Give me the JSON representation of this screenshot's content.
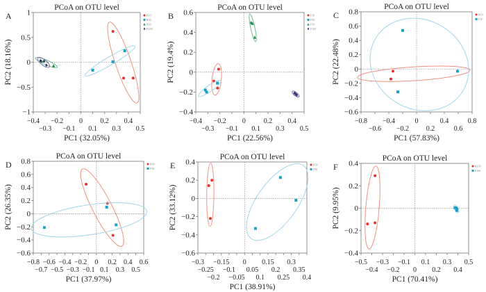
{
  "chart_data": [
    {
      "panel": "A",
      "type": "scatter",
      "title": "PCoA on OTU level",
      "xlabel": "PC1 (32.05%)",
      "ylabel": "PC2 (18.16%)",
      "xlim": [
        -0.4,
        0.5
      ],
      "xtick_step": 0.1,
      "ylim": [
        -1,
        1
      ],
      "ytick_step": 0.5,
      "zero_lines": true,
      "legend": "top-right",
      "series": [
        {
          "name": "R10",
          "color": "#e8312a",
          "ellipse_color": "#f3907f",
          "marker": "circle",
          "points": [
            [
              0.27,
              0.62
            ],
            [
              0.36,
              -0.32
            ],
            [
              0.44,
              -0.32
            ]
          ]
        },
        {
          "name": "R30",
          "color": "#1ba1c6",
          "ellipse_color": "#9fd5ea",
          "marker": "square",
          "points": [
            [
              0.1,
              -0.16
            ],
            [
              0.27,
              0.01
            ],
            [
              0.37,
              0.23
            ]
          ]
        },
        {
          "name": "R50",
          "color": "#1a8a4a",
          "ellipse_color": "#6db98c",
          "marker": "triangle",
          "points": [
            [
              -0.33,
              0.02
            ],
            [
              -0.31,
              0.03
            ],
            [
              -0.23,
              -0.07
            ]
          ]
        },
        {
          "name": "R100",
          "color": "#3b2b6e",
          "ellipse_color": "#7b70a6",
          "marker": "diamond",
          "points": [
            [
              -0.34,
              0.03
            ],
            [
              -0.31,
              0.02
            ],
            [
              -0.29,
              -0.06
            ]
          ]
        }
      ]
    },
    {
      "panel": "B",
      "type": "scatter",
      "title": "PCoA on OTU level",
      "xlabel": "PC1 (22.56%)",
      "ylabel": "PC2 (19.4%)",
      "xlim": [
        -0.4,
        0.5
      ],
      "xtick_step": 0.1,
      "ylim": [
        -0.4,
        0.6
      ],
      "ytick_step": 0.2,
      "zero_lines": true,
      "legend": "top-right",
      "series": [
        {
          "name": "F10",
          "color": "#e8312a",
          "ellipse_color": "#f3907f",
          "marker": "circle",
          "points": [
            [
              -0.25,
              -0.09
            ],
            [
              -0.21,
              0.03
            ],
            [
              -0.22,
              -0.16
            ]
          ]
        },
        {
          "name": "F30",
          "color": "#1ba1c6",
          "ellipse_color": "#9fd5ea",
          "marker": "square",
          "points": [
            [
              -0.32,
              -0.18
            ],
            [
              -0.31,
              -0.2
            ],
            [
              -0.22,
              -0.11
            ]
          ]
        },
        {
          "name": "F50",
          "color": "#1a8a4a",
          "ellipse_color": "#6db98c",
          "marker": "triangle",
          "points": [
            [
              0.06,
              0.5
            ],
            [
              0.07,
              0.49
            ],
            [
              0.09,
              0.35
            ]
          ]
        },
        {
          "name": "F100",
          "color": "#3b2b6e",
          "ellipse_color": "#7b70a6",
          "marker": "diamond",
          "points": [
            [
              0.42,
              -0.21
            ],
            [
              0.43,
              -0.22
            ],
            [
              0.44,
              -0.23
            ]
          ]
        }
      ]
    },
    {
      "panel": "C",
      "type": "scatter",
      "title": "PCoA on OTU level",
      "xlabel": "PC1 (57.83%)",
      "ylabel": "PC2 (22.48%)",
      "xlim": [
        -0.8,
        0.8
      ],
      "xtick_step": 0.2,
      "ylim": [
        -0.6,
        0.8
      ],
      "ytick_step": 0.2,
      "zero_lines": true,
      "legend": "top-right",
      "series": [
        {
          "name": "R10",
          "color": "#e8312a",
          "ellipse_color": "#f3907f",
          "marker": "circle",
          "points": [
            [
              -0.34,
              -0.03
            ],
            [
              -0.37,
              -0.14
            ],
            [
              0.59,
              -0.03
            ]
          ]
        },
        {
          "name": "F10",
          "color": "#1ba1c6",
          "ellipse_color": "#9fd5ea",
          "marker": "square",
          "points": [
            [
              -0.2,
              0.54
            ],
            [
              -0.27,
              -0.32
            ],
            [
              0.59,
              -0.03
            ]
          ]
        }
      ]
    },
    {
      "panel": "D",
      "type": "scatter",
      "title": "PCoA on OTU level",
      "xlabel": "PC1 (37.97%)",
      "ylabel": "PC2 (26.35%)",
      "xlim": [
        -0.8,
        0.6
      ],
      "xtick_step": 0.1,
      "ylim": [
        -0.6,
        0.8
      ],
      "ytick_step": 0.2,
      "zero_lines": true,
      "legend": "top-right",
      "series": [
        {
          "name": "R30",
          "color": "#e8312a",
          "ellipse_color": "#f3907f",
          "marker": "circle",
          "points": [
            [
              -0.13,
              0.45
            ],
            [
              0.14,
              0.16
            ],
            [
              0.21,
              -0.33
            ]
          ]
        },
        {
          "name": "F30",
          "color": "#1ba1c6",
          "ellipse_color": "#9fd5ea",
          "marker": "square",
          "points": [
            [
              -0.66,
              -0.21
            ],
            [
              0.13,
              0.1
            ],
            [
              0.25,
              -0.17
            ]
          ]
        }
      ]
    },
    {
      "panel": "E",
      "type": "scatter",
      "title": "PCoA on OTU level",
      "xlabel": "PC1 (38.91%)",
      "ylabel": "PC2 (33.12%)",
      "xlim": [
        -0.3,
        0.4
      ],
      "xtick_step": 0.05,
      "ylim": [
        -0.6,
        0.4
      ],
      "ytick_step": 0.2,
      "zero_lines": true,
      "legend": "top-right",
      "series": [
        {
          "name": "R50",
          "color": "#e8312a",
          "ellipse_color": "#f3907f",
          "marker": "circle",
          "points": [
            [
              -0.23,
              0.14
            ],
            [
              -0.21,
              0.2
            ],
            [
              -0.22,
              -0.22
            ]
          ]
        },
        {
          "name": "F50",
          "color": "#1ba1c6",
          "ellipse_color": "#9fd5ea",
          "marker": "square",
          "points": [
            [
              0.07,
              -0.33
            ],
            [
              0.23,
              0.23
            ],
            [
              0.33,
              -0.02
            ]
          ]
        }
      ]
    },
    {
      "panel": "F",
      "type": "scatter",
      "title": "PCoA on OTU level",
      "xlabel": "PC1 (70.41%)",
      "ylabel": "PC2 (9.95%)",
      "xlim": [
        -0.5,
        0.5
      ],
      "xtick_step": 0.1,
      "ylim": [
        -0.4,
        0.4
      ],
      "ytick_step": 0.2,
      "zero_lines": true,
      "legend": "top-right",
      "series": [
        {
          "name": "R100",
          "color": "#e8312a",
          "ellipse_color": "#f3907f",
          "marker": "circle",
          "points": [
            [
              -0.37,
              0.29
            ],
            [
              -0.44,
              -0.14
            ],
            [
              -0.37,
              -0.13
            ]
          ]
        },
        {
          "name": "F100",
          "color": "#1ba1c6",
          "ellipse_color": "#9fd5ea",
          "marker": "square",
          "points": [
            [
              0.375,
              0.005
            ],
            [
              0.385,
              0.0
            ],
            [
              0.39,
              -0.01
            ],
            [
              0.39,
              -0.02
            ]
          ]
        }
      ]
    }
  ]
}
